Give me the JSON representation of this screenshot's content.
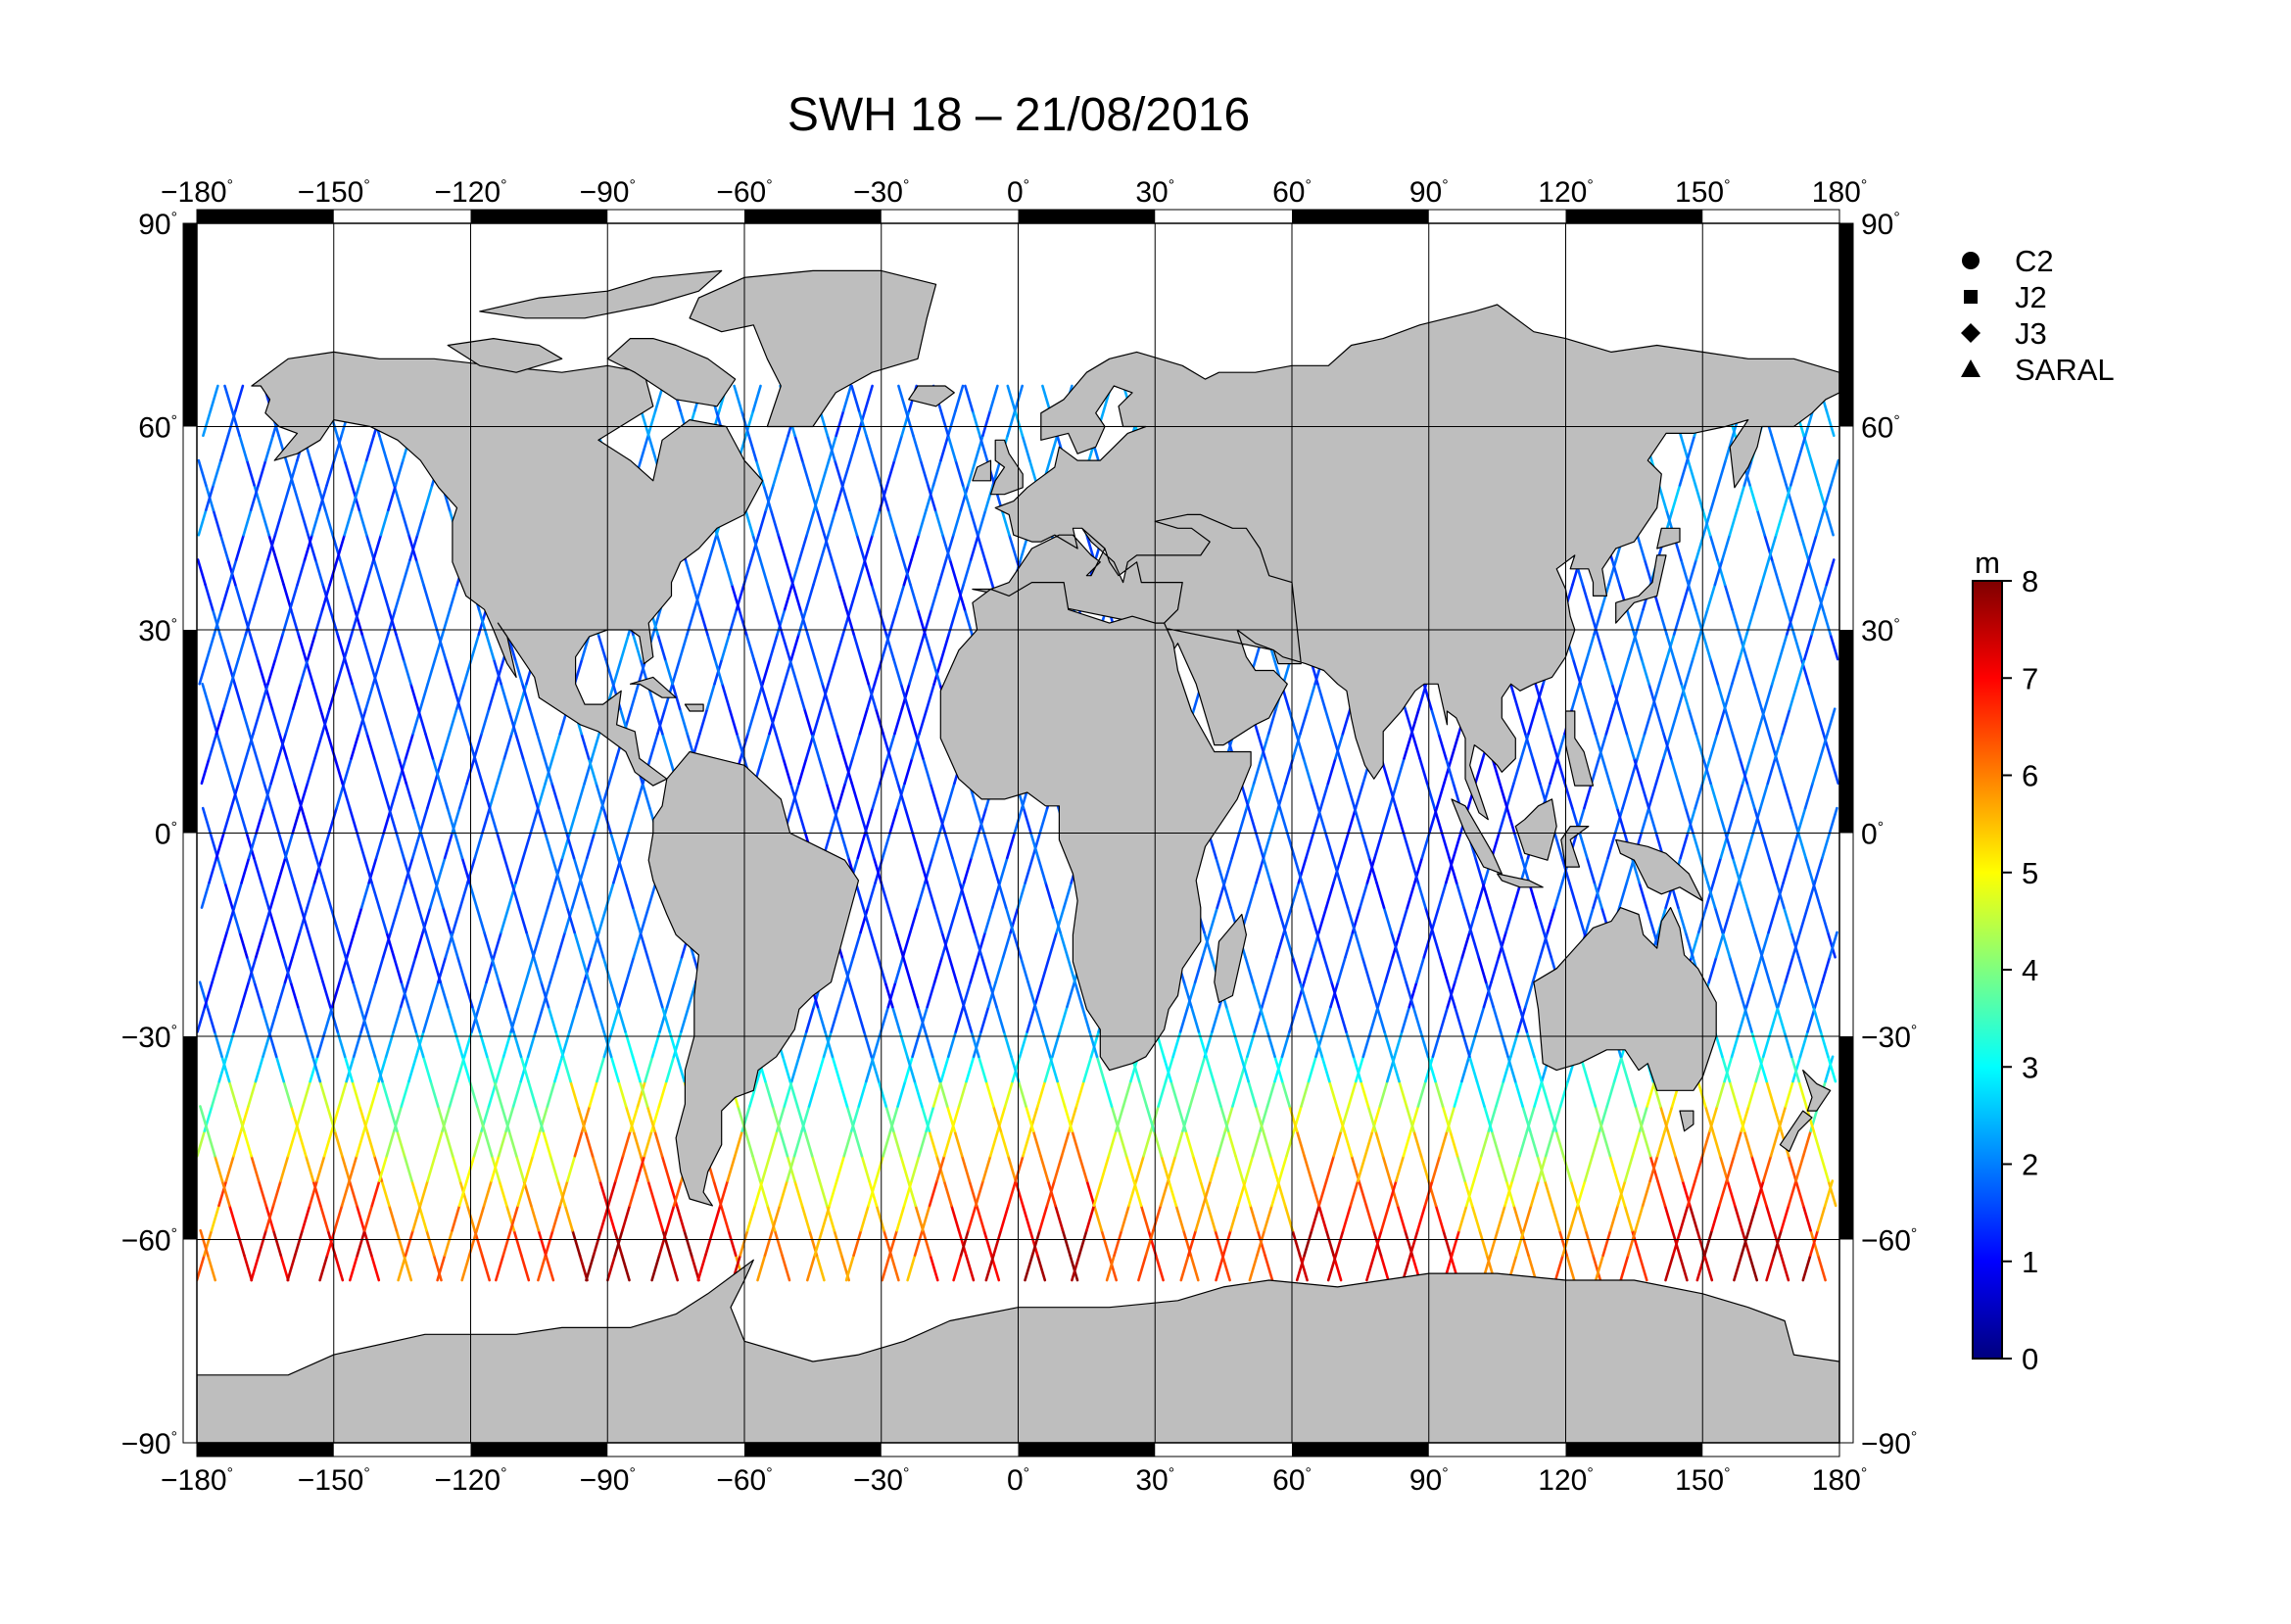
{
  "title": "SWH 18 – 21/08/2016",
  "map": {
    "projection": "equirectangular",
    "lon_range": [
      -180,
      180
    ],
    "lat_range": [
      -90,
      90
    ],
    "lon_ticks": [
      -180,
      -150,
      -120,
      -90,
      -60,
      -30,
      0,
      30,
      60,
      90,
      120,
      150,
      180
    ],
    "lat_ticks": [
      90,
      60,
      30,
      0,
      -30,
      -60,
      -90
    ],
    "lon_tick_labels": [
      "−180",
      "−150",
      "−120",
      "−90",
      "−60",
      "−30",
      "0",
      "30",
      "60",
      "90",
      "120",
      "150",
      "180"
    ],
    "lat_tick_labels": [
      "90",
      "60",
      "30",
      "0",
      "−30",
      "−60",
      "−90"
    ],
    "degree_symbol": "°",
    "land_color": "#bebebe",
    "ocean_color": "#ffffff",
    "grid": true
  },
  "legend": {
    "items": [
      {
        "symbol": "circle",
        "label": "C2"
      },
      {
        "symbol": "square",
        "label": "J2"
      },
      {
        "symbol": "diamond",
        "label": "J3"
      },
      {
        "symbol": "triangle",
        "label": "SARAL"
      }
    ]
  },
  "colorbar": {
    "unit": "m",
    "min": 0,
    "max": 8,
    "tick_labels": [
      "0",
      "1",
      "2",
      "3",
      "4",
      "5",
      "6",
      "7",
      "8"
    ],
    "colormap": [
      "#00007f",
      "#0000ff",
      "#007fff",
      "#00ffff",
      "#7fff7f",
      "#ffff00",
      "#ff7f00",
      "#ff0000",
      "#7f0000"
    ]
  }
}
